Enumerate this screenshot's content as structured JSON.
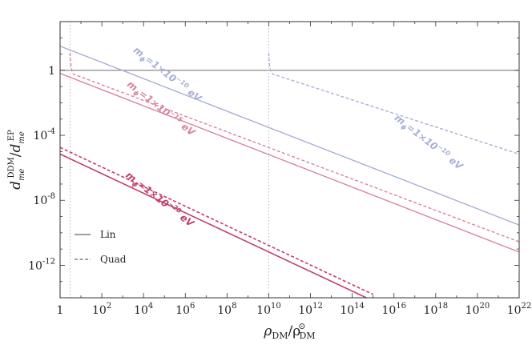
{
  "chart_data": {
    "type": "line",
    "title": "",
    "xlabel": "ρ_DM / ρ_DM^⊙",
    "ylabel": "d_me^DDM / d_me^EP",
    "x_scale": "log",
    "y_scale": "log",
    "xlim": [
      1,
      1e+22
    ],
    "ylim": [
      1e-14,
      1000.0
    ],
    "x_ticks": [
      {
        "value": 1,
        "label": "1"
      },
      {
        "value": 100.0,
        "label": "10^2"
      },
      {
        "value": 10000.0,
        "label": "10^4"
      },
      {
        "value": 1000000.0,
        "label": "10^6"
      },
      {
        "value": 100000000.0,
        "label": "10^8"
      },
      {
        "value": 10000000000.0,
        "label": "10^10"
      },
      {
        "value": 1000000000000.0,
        "label": "10^12"
      },
      {
        "value": 100000000000000.0,
        "label": "10^14"
      },
      {
        "value": 1e+16,
        "label": "10^16"
      },
      {
        "value": 1e+18,
        "label": "10^18"
      },
      {
        "value": 1e+20,
        "label": "10^20"
      },
      {
        "value": 1e+22,
        "label": "10^22"
      }
    ],
    "y_ticks": [
      {
        "value": 1,
        "label": "1"
      },
      {
        "value": 0.0001,
        "label": "10^-4"
      },
      {
        "value": 1e-08,
        "label": "10^-8"
      },
      {
        "value": 1e-12,
        "label": "10^-12"
      }
    ],
    "reference_lines": [
      {
        "orientation": "horizontal",
        "value": 1,
        "color": "#888888",
        "style": "solid"
      },
      {
        "orientation": "vertical",
        "value": 3,
        "color": "#bbbbbb",
        "style": "dotted"
      },
      {
        "orientation": "vertical",
        "value": 10000000000.0,
        "color": "#bbbbbb",
        "style": "dotted"
      }
    ],
    "series": [
      {
        "id": "lin-10",
        "style": "solid",
        "color": "#a8b0d6",
        "points": [
          [
            1,
            31
          ],
          [
            1e+22,
            3e-10
          ]
        ]
      },
      {
        "id": "lin-15",
        "style": "solid",
        "color": "#d9869c",
        "points": [
          [
            1,
            0.65
          ],
          [
            1e+22,
            6.5e-12
          ]
        ]
      },
      {
        "id": "lin-20",
        "style": "solid",
        "color": "#c23e6c",
        "points": [
          [
            1,
            7e-06
          ],
          [
            1000000000000000.0,
            6.4e-15
          ]
        ]
      },
      {
        "id": "quad-10",
        "style": "dashed",
        "color": "#a8b0d6",
        "points": [
          [
            10000000000.0,
            12
          ],
          [
            10500000000.0,
            3
          ],
          [
            12000000000.0,
            1
          ],
          [
            15000000000.0,
            0.6
          ],
          [
            1e+22,
            7e-06
          ]
        ]
      },
      {
        "id": "quad-15",
        "style": "dashed",
        "color": "#d9869c",
        "points": [
          [
            3.0,
            12
          ],
          [
            3.2,
            3
          ],
          [
            3.6,
            1
          ],
          [
            4.2,
            0.6
          ],
          [
            1e+22,
            2.8e-11
          ]
        ]
      },
      {
        "id": "quad-20",
        "style": "dashed",
        "color": "#c23e6c",
        "points": [
          [
            1,
            1.8e-05
          ],
          [
            1000000000000000.0,
            1.6e-14
          ]
        ]
      }
    ],
    "annotations": [
      {
        "parts": [
          "m",
          "ϕ",
          "=1×10",
          "−10",
          " eV"
        ],
        "color": "#a8b0d6",
        "at": [
          3000.0,
          15
        ]
      },
      {
        "parts": [
          "m",
          "ϕ",
          "=1×10",
          "−15",
          " eV"
        ],
        "color": "#d9869c",
        "at": [
          1500.0,
          0.12
        ]
      },
      {
        "parts": [
          "m",
          "ϕ",
          "=1×10",
          "−20",
          " eV"
        ],
        "color": "#c23e6c",
        "at": [
          1300.0,
          3e-07
        ]
      },
      {
        "parts": [
          "m",
          "ϕ",
          "=1×10",
          "−10",
          " eV"
        ],
        "color": "#a8b0d6",
        "at": [
          1e+16,
          0.001
        ]
      }
    ],
    "legend": {
      "placement": "bottom-left",
      "entries": [
        {
          "label": "Lin",
          "style": "solid"
        },
        {
          "label": "Quad",
          "style": "dashed"
        }
      ]
    }
  }
}
